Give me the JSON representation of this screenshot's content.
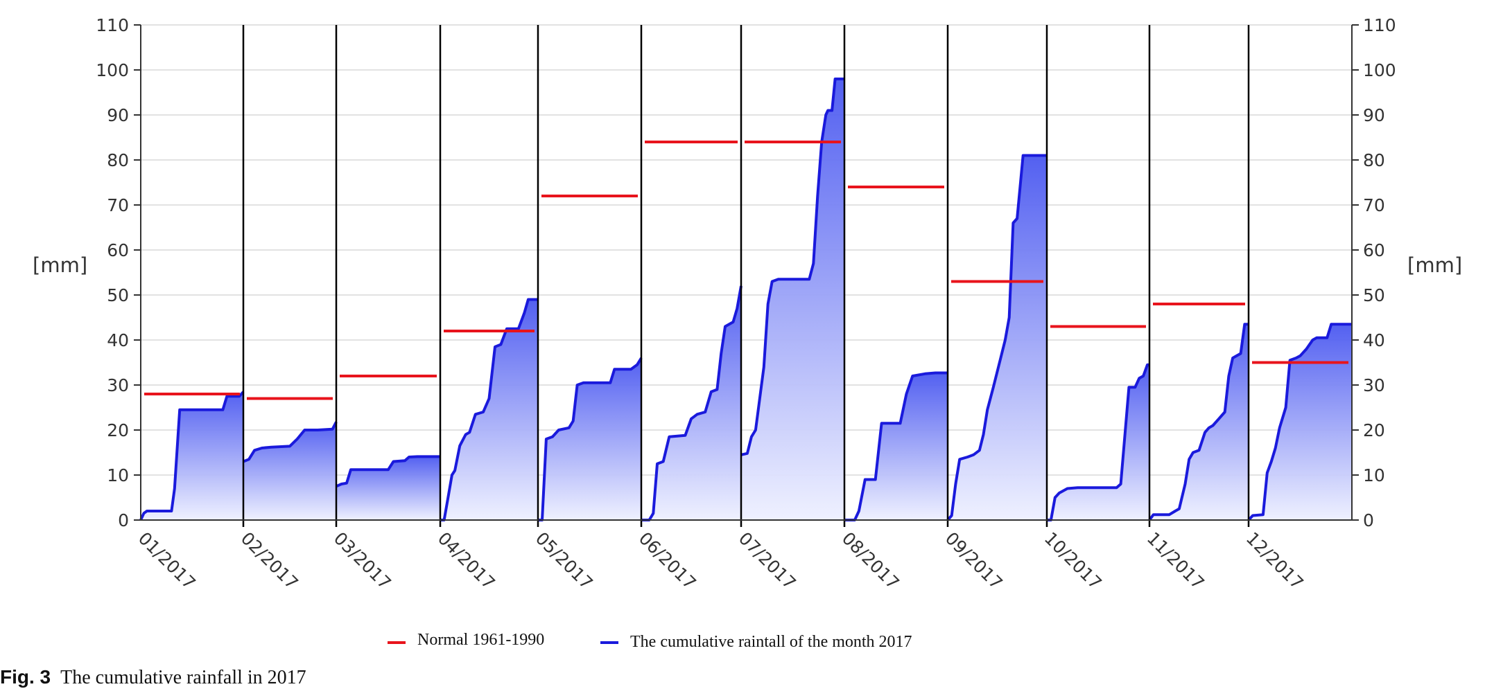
{
  "chart_data": {
    "type": "area",
    "ylabel_left": "[mm]",
    "ylabel_right": "[mm]",
    "ylim": [
      0,
      110
    ],
    "yticks": [
      0,
      10,
      20,
      30,
      40,
      50,
      60,
      70,
      80,
      90,
      100,
      110
    ],
    "months": [
      "01/2017",
      "02/2017",
      "03/2017",
      "04/2017",
      "05/2017",
      "06/2017",
      "07/2017",
      "08/2017",
      "09/2017",
      "10/2017",
      "11/2017",
      "12/2017"
    ],
    "grid": true,
    "legend_position": "bottom",
    "colors": {
      "normal": "#e8141c",
      "cumulative_line": "#1a1adc",
      "cumulative_fill_top": "#4a58f0",
      "cumulative_fill_bottom": "#eef0ff"
    },
    "series": [
      {
        "name": "Normal 1961-1990",
        "type": "step",
        "values": [
          28,
          27,
          32,
          42,
          72,
          84,
          84,
          74,
          53,
          43,
          48,
          35
        ]
      },
      {
        "name": "The cumulative raintall of the month 2017",
        "type": "area",
        "x_unit": "fraction of month",
        "monthly_points": [
          [
            [
              0,
              0
            ],
            [
              0.03,
              1.5
            ],
            [
              0.06,
              2
            ],
            [
              0.3,
              2
            ],
            [
              0.33,
              7
            ],
            [
              0.38,
              24.5
            ],
            [
              0.8,
              24.5
            ],
            [
              0.84,
              27.5
            ],
            [
              0.96,
              27.5
            ],
            [
              1,
              28.5
            ]
          ],
          [
            [
              0,
              13
            ],
            [
              0.06,
              13.5
            ],
            [
              0.12,
              15.5
            ],
            [
              0.2,
              16
            ],
            [
              0.3,
              16.2
            ],
            [
              0.5,
              16.4
            ],
            [
              0.58,
              18
            ],
            [
              0.66,
              20
            ],
            [
              0.8,
              20
            ],
            [
              0.96,
              20.2
            ],
            [
              1,
              21.8
            ]
          ],
          [
            [
              0,
              7.5
            ],
            [
              0.05,
              8
            ],
            [
              0.1,
              8.2
            ],
            [
              0.14,
              11.2
            ],
            [
              0.5,
              11.2
            ],
            [
              0.55,
              13
            ],
            [
              0.66,
              13.2
            ],
            [
              0.7,
              14
            ],
            [
              0.78,
              14.1
            ],
            [
              0.96,
              14.1
            ],
            [
              1,
              14.1
            ]
          ],
          [
            [
              0,
              0
            ],
            [
              0.04,
              0
            ],
            [
              0.08,
              5
            ],
            [
              0.12,
              10
            ],
            [
              0.15,
              11
            ],
            [
              0.2,
              16.5
            ],
            [
              0.26,
              19
            ],
            [
              0.3,
              19.5
            ],
            [
              0.36,
              23.5
            ],
            [
              0.44,
              24
            ],
            [
              0.5,
              27
            ],
            [
              0.56,
              38.5
            ],
            [
              0.62,
              39
            ],
            [
              0.68,
              42.5
            ],
            [
              0.8,
              42.5
            ],
            [
              0.86,
              46
            ],
            [
              0.9,
              49
            ],
            [
              0.96,
              49
            ],
            [
              1,
              49
            ]
          ],
          [
            [
              0,
              0
            ],
            [
              0.04,
              0
            ],
            [
              0.08,
              18
            ],
            [
              0.14,
              18.5
            ],
            [
              0.2,
              20
            ],
            [
              0.3,
              20.5
            ],
            [
              0.34,
              22
            ],
            [
              0.38,
              30
            ],
            [
              0.44,
              30.5
            ],
            [
              0.7,
              30.5
            ],
            [
              0.74,
              33.5
            ],
            [
              0.9,
              33.5
            ],
            [
              0.96,
              34.5
            ],
            [
              1,
              36
            ]
          ],
          [
            [
              0,
              0
            ],
            [
              0.08,
              0
            ],
            [
              0.12,
              1.5
            ],
            [
              0.16,
              12.5
            ],
            [
              0.22,
              13
            ],
            [
              0.28,
              18.5
            ],
            [
              0.44,
              18.8
            ],
            [
              0.5,
              22.5
            ],
            [
              0.56,
              23.5
            ],
            [
              0.64,
              24
            ],
            [
              0.7,
              28.5
            ],
            [
              0.76,
              29
            ],
            [
              0.8,
              37
            ],
            [
              0.84,
              43
            ],
            [
              0.92,
              44
            ],
            [
              0.96,
              47
            ],
            [
              1,
              52
            ]
          ],
          [
            [
              0,
              14.5
            ],
            [
              0.06,
              14.8
            ],
            [
              0.1,
              18.5
            ],
            [
              0.14,
              20
            ],
            [
              0.22,
              34
            ],
            [
              0.26,
              48
            ],
            [
              0.3,
              53
            ],
            [
              0.36,
              53.5
            ],
            [
              0.66,
              53.5
            ],
            [
              0.7,
              57
            ],
            [
              0.74,
              72
            ],
            [
              0.78,
              84
            ],
            [
              0.82,
              90
            ],
            [
              0.84,
              91
            ],
            [
              0.88,
              91
            ],
            [
              0.91,
              98
            ],
            [
              1,
              98
            ]
          ],
          [
            [
              0,
              0
            ],
            [
              0.1,
              0
            ],
            [
              0.14,
              2
            ],
            [
              0.2,
              9
            ],
            [
              0.3,
              9
            ],
            [
              0.36,
              21.5
            ],
            [
              0.54,
              21.5
            ],
            [
              0.6,
              28
            ],
            [
              0.66,
              32
            ],
            [
              0.78,
              32.5
            ],
            [
              0.88,
              32.7
            ],
            [
              0.96,
              32.7
            ],
            [
              1,
              32.7
            ]
          ],
          [
            [
              0,
              0
            ],
            [
              0.04,
              1
            ],
            [
              0.08,
              8
            ],
            [
              0.12,
              13.5
            ],
            [
              0.2,
              14
            ],
            [
              0.26,
              14.5
            ],
            [
              0.32,
              15.5
            ],
            [
              0.36,
              19
            ],
            [
              0.4,
              24.5
            ],
            [
              0.46,
              29.5
            ],
            [
              0.54,
              36.5
            ],
            [
              0.58,
              40
            ],
            [
              0.62,
              45
            ],
            [
              0.66,
              66
            ],
            [
              0.7,
              67
            ],
            [
              0.76,
              81
            ],
            [
              1,
              81
            ]
          ],
          [
            [
              0,
              0
            ],
            [
              0.04,
              0
            ],
            [
              0.08,
              5
            ],
            [
              0.12,
              6
            ],
            [
              0.2,
              7
            ],
            [
              0.3,
              7.2
            ],
            [
              0.68,
              7.2
            ],
            [
              0.72,
              8
            ],
            [
              0.8,
              29.5
            ],
            [
              0.86,
              29.5
            ],
            [
              0.9,
              31.5
            ],
            [
              0.94,
              32
            ],
            [
              0.98,
              34.5
            ],
            [
              1,
              34.5
            ]
          ],
          [
            [
              0,
              0
            ],
            [
              0.04,
              1.2
            ],
            [
              0.2,
              1.2
            ],
            [
              0.26,
              2
            ],
            [
              0.3,
              2.5
            ],
            [
              0.36,
              8
            ],
            [
              0.4,
              13.5
            ],
            [
              0.44,
              15
            ],
            [
              0.5,
              15.5
            ],
            [
              0.56,
              19.5
            ],
            [
              0.6,
              20.5
            ],
            [
              0.64,
              21
            ],
            [
              0.7,
              22.5
            ],
            [
              0.76,
              24
            ],
            [
              0.8,
              32
            ],
            [
              0.84,
              36
            ],
            [
              0.88,
              36.5
            ],
            [
              0.92,
              37
            ],
            [
              0.96,
              43.5
            ],
            [
              1,
              43.5
            ]
          ],
          [
            [
              0,
              0
            ],
            [
              0.04,
              1
            ],
            [
              0.14,
              1.2
            ],
            [
              0.18,
              10.5
            ],
            [
              0.22,
              13
            ],
            [
              0.26,
              16
            ],
            [
              0.3,
              20.5
            ],
            [
              0.36,
              25
            ],
            [
              0.4,
              35.5
            ],
            [
              0.46,
              36
            ],
            [
              0.5,
              36.5
            ],
            [
              0.56,
              38
            ],
            [
              0.62,
              40
            ],
            [
              0.66,
              40.5
            ],
            [
              0.76,
              40.5
            ],
            [
              0.8,
              43.5
            ],
            [
              0.86,
              43.5
            ],
            [
              0.9,
              43.5
            ],
            [
              1,
              43.5
            ]
          ]
        ]
      }
    ]
  },
  "caption": {
    "label": "Fig. 3",
    "text": "The cumulative rainfall in 2017"
  }
}
